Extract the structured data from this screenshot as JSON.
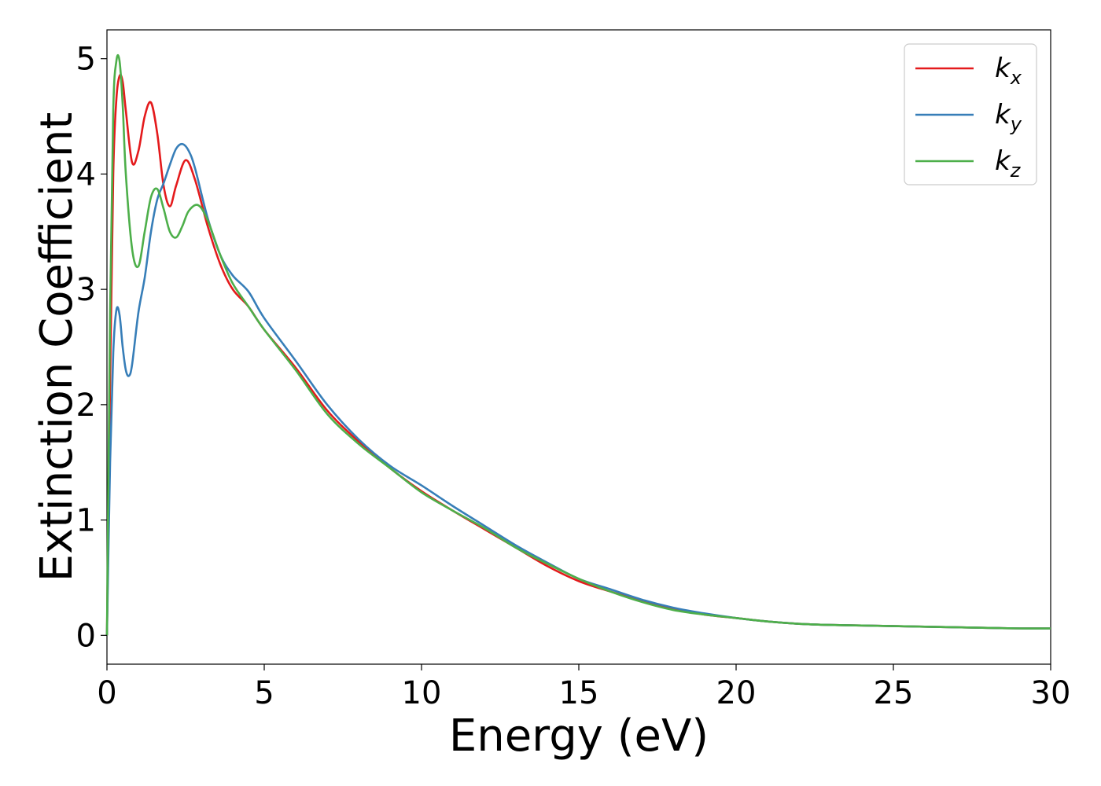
{
  "chart_data": {
    "type": "line",
    "title": "",
    "xlabel": "Energy (eV)",
    "ylabel": "Extinction Coefficient",
    "xlim": [
      0,
      30
    ],
    "ylim": [
      -0.25,
      5.25
    ],
    "xticks": [
      0,
      5,
      10,
      15,
      20,
      25,
      30
    ],
    "yticks": [
      0,
      1,
      2,
      3,
      4,
      5
    ],
    "grid": false,
    "legend_position": "top-right",
    "series": [
      {
        "name": "k",
        "subscript": "x",
        "color": "#e41a1c",
        "x": [
          0,
          0.1,
          0.2,
          0.3,
          0.4,
          0.5,
          0.6,
          0.8,
          1.0,
          1.2,
          1.4,
          1.6,
          1.8,
          2.0,
          2.2,
          2.5,
          2.8,
          3.2,
          3.6,
          4.0,
          4.5,
          5.0,
          6.0,
          7.0,
          8.0,
          9.0,
          10.0,
          11.0,
          12.0,
          13.0,
          14.0,
          15.0,
          16.0,
          17.0,
          18.0,
          19.0,
          20.0,
          21.0,
          22.0,
          23.0,
          24.0,
          25.0,
          26.0,
          27.0,
          28.0,
          29.0,
          30.0
        ],
        "y": [
          0,
          2.2,
          4.0,
          4.65,
          4.85,
          4.8,
          4.55,
          4.1,
          4.2,
          4.5,
          4.62,
          4.35,
          3.9,
          3.72,
          3.9,
          4.12,
          3.95,
          3.55,
          3.22,
          3.0,
          2.85,
          2.65,
          2.32,
          1.95,
          1.68,
          1.45,
          1.25,
          1.08,
          0.92,
          0.76,
          0.6,
          0.47,
          0.38,
          0.3,
          0.23,
          0.18,
          0.15,
          0.12,
          0.1,
          0.09,
          0.085,
          0.08,
          0.075,
          0.07,
          0.065,
          0.06,
          0.06
        ]
      },
      {
        "name": "k",
        "subscript": "y",
        "color": "#377eb8",
        "x": [
          0,
          0.1,
          0.2,
          0.3,
          0.4,
          0.5,
          0.6,
          0.7,
          0.8,
          1.0,
          1.2,
          1.4,
          1.6,
          1.8,
          2.0,
          2.2,
          2.4,
          2.6,
          2.8,
          3.2,
          3.6,
          4.0,
          4.5,
          5.0,
          6.0,
          7.0,
          8.0,
          9.0,
          10.0,
          11.0,
          12.0,
          13.0,
          14.0,
          15.0,
          16.0,
          17.0,
          18.0,
          19.0,
          20.0,
          21.0,
          22.0,
          23.0,
          24.0,
          25.0,
          26.0,
          27.0,
          28.0,
          29.0,
          30.0
        ],
        "y": [
          0,
          1.5,
          2.45,
          2.82,
          2.78,
          2.5,
          2.3,
          2.25,
          2.35,
          2.8,
          3.1,
          3.5,
          3.78,
          3.92,
          4.08,
          4.22,
          4.26,
          4.2,
          4.05,
          3.62,
          3.3,
          3.12,
          2.98,
          2.75,
          2.38,
          2.0,
          1.7,
          1.47,
          1.3,
          1.12,
          0.95,
          0.78,
          0.63,
          0.49,
          0.4,
          0.31,
          0.24,
          0.19,
          0.15,
          0.12,
          0.1,
          0.09,
          0.085,
          0.08,
          0.075,
          0.07,
          0.065,
          0.06,
          0.06
        ]
      },
      {
        "name": "k",
        "subscript": "z",
        "color": "#4daf4a",
        "x": [
          0,
          0.1,
          0.2,
          0.3,
          0.4,
          0.5,
          0.6,
          0.8,
          1.0,
          1.2,
          1.4,
          1.6,
          1.8,
          2.0,
          2.2,
          2.4,
          2.6,
          2.9,
          3.2,
          3.6,
          4.0,
          4.5,
          5.0,
          6.0,
          7.0,
          8.0,
          9.0,
          10.0,
          11.0,
          12.0,
          13.0,
          14.0,
          15.0,
          16.0,
          17.0,
          18.0,
          19.0,
          20.0,
          21.0,
          22.0,
          23.0,
          24.0,
          25.0,
          26.0,
          27.0,
          28.0,
          29.0,
          30.0
        ],
        "y": [
          0,
          2.8,
          4.55,
          4.98,
          4.98,
          4.6,
          4.0,
          3.35,
          3.2,
          3.5,
          3.8,
          3.87,
          3.7,
          3.5,
          3.45,
          3.55,
          3.68,
          3.73,
          3.6,
          3.3,
          3.05,
          2.85,
          2.65,
          2.3,
          1.92,
          1.66,
          1.45,
          1.24,
          1.08,
          0.93,
          0.76,
          0.62,
          0.49,
          0.38,
          0.29,
          0.22,
          0.18,
          0.15,
          0.12,
          0.1,
          0.09,
          0.085,
          0.08,
          0.075,
          0.07,
          0.065,
          0.06,
          0.06
        ]
      }
    ]
  }
}
